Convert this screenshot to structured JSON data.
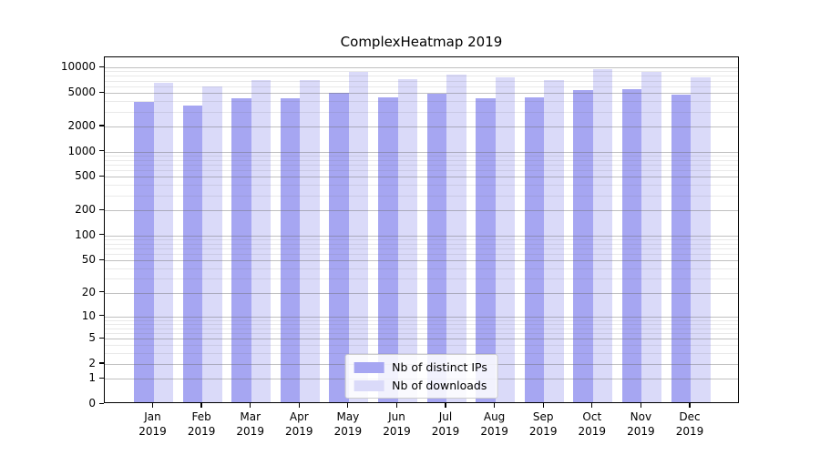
{
  "chart_data": {
    "type": "bar",
    "title": "ComplexHeatmap 2019",
    "categories": [
      "Jan",
      "Feb",
      "Mar",
      "Apr",
      "May",
      "Jun",
      "Jul",
      "Aug",
      "Sep",
      "Oct",
      "Nov",
      "Dec"
    ],
    "year_label": "2019",
    "series": [
      {
        "name": "Nb of distinct IPs",
        "color": "#a6a6f2",
        "values": [
          3700,
          3400,
          4050,
          4150,
          4800,
          4250,
          4700,
          4150,
          4220,
          5150,
          5320,
          4500
        ]
      },
      {
        "name": "Nb of downloads",
        "color": "#dadaf9",
        "values": [
          6200,
          5600,
          6800,
          6800,
          8400,
          6950,
          7900,
          7200,
          6700,
          9050,
          8450,
          7300
        ]
      }
    ],
    "yscale": "log1p",
    "ylim": [
      0,
      13200
    ],
    "yticks": [
      0,
      1,
      2,
      5,
      10,
      20,
      50,
      100,
      200,
      500,
      1000,
      2000,
      5000,
      10000
    ],
    "grid": {
      "orientation": "horizontal",
      "major_color": "#c6c6c6",
      "minor_color": "#e9e9e9"
    },
    "legend": {
      "position": "lower center"
    },
    "axis_color": "#000000"
  }
}
